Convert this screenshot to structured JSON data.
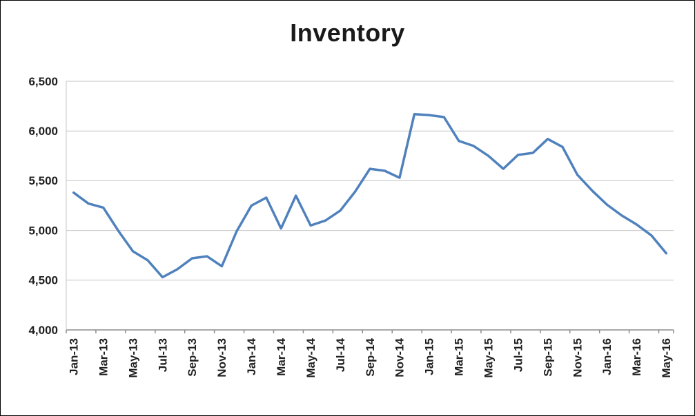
{
  "chart": {
    "title": "Inventory"
  },
  "chart_data": {
    "type": "line",
    "title": "Inventory",
    "x": [
      "Jan-13",
      "Feb-13",
      "Mar-13",
      "Apr-13",
      "May-13",
      "Jun-13",
      "Jul-13",
      "Aug-13",
      "Sep-13",
      "Oct-13",
      "Nov-13",
      "Dec-13",
      "Jan-14",
      "Feb-14",
      "Mar-14",
      "Apr-14",
      "May-14",
      "Jun-14",
      "Jul-14",
      "Aug-14",
      "Sep-14",
      "Oct-14",
      "Nov-14",
      "Dec-14",
      "Jan-15",
      "Feb-15",
      "Mar-15",
      "Apr-15",
      "May-15",
      "Jun-15",
      "Jul-15",
      "Aug-15",
      "Sep-15",
      "Oct-15",
      "Nov-15",
      "Dec-15",
      "Jan-16",
      "Feb-16",
      "Mar-16",
      "Apr-16",
      "May-16"
    ],
    "values": [
      5380,
      5270,
      5230,
      5000,
      4790,
      4700,
      4530,
      4610,
      4720,
      4740,
      4640,
      4990,
      5250,
      5330,
      5020,
      5350,
      5050,
      5100,
      5200,
      5390,
      5620,
      5600,
      5530,
      6170,
      6160,
      6140,
      5900,
      5850,
      5750,
      5620,
      5760,
      5780,
      5920,
      5840,
      5560,
      5400,
      5260,
      5150,
      5060,
      4950,
      4770
    ],
    "xlabel": "",
    "ylabel": "",
    "ylim": [
      4000,
      6500
    ],
    "ytick_step": 500,
    "xtick_every": 2,
    "grid": "horizontal",
    "legend": "none",
    "line_color": "#4F81BD",
    "grid_color": "#C6C6C6",
    "axis_color": "#8C8C8C",
    "label_color": "#1f1f1f"
  }
}
